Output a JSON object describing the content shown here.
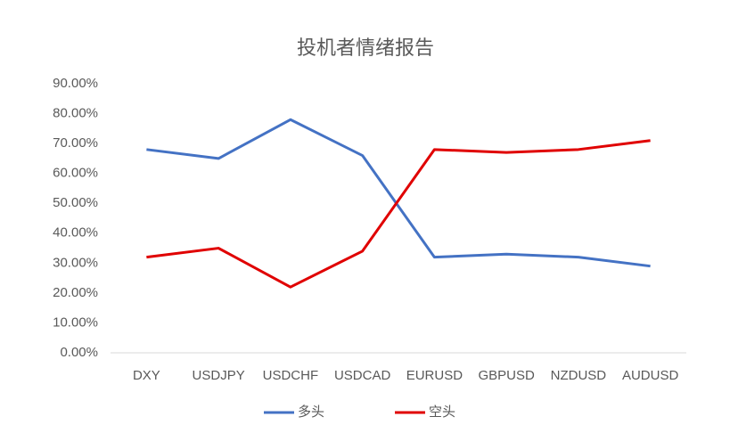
{
  "chart_data": {
    "type": "line",
    "title": "投机者情绪报告",
    "categories": [
      "DXY",
      "USDJPY",
      "USDCHF",
      "USDCAD",
      "EURUSD",
      "GBPUSD",
      "NZDUSD",
      "AUDUSD"
    ],
    "series": [
      {
        "name": "多头",
        "color": "#4472c4",
        "values": [
          68,
          65,
          78,
          66,
          32,
          33,
          32,
          29
        ]
      },
      {
        "name": "空头",
        "color": "#e00000",
        "values": [
          32,
          35,
          22,
          34,
          68,
          67,
          68,
          71
        ]
      }
    ],
    "ylim": [
      0,
      90
    ],
    "yticks": [
      {
        "value": 0,
        "label": "0.00%"
      },
      {
        "value": 10,
        "label": "10.00%"
      },
      {
        "value": 20,
        "label": "20.00%"
      },
      {
        "value": 30,
        "label": "30.00%"
      },
      {
        "value": 40,
        "label": "40.00%"
      },
      {
        "value": 50,
        "label": "50.00%"
      },
      {
        "value": 60,
        "label": "60.00%"
      },
      {
        "value": 70,
        "label": "70.00%"
      },
      {
        "value": 80,
        "label": "80.00%"
      },
      {
        "value": 90,
        "label": "90.00%"
      }
    ],
    "grid": false,
    "legend": "bottom"
  }
}
